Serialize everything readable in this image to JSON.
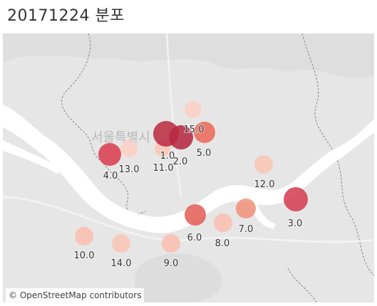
{
  "header": {
    "title": "20171224 분포"
  },
  "map": {
    "city_label": "서울특별시",
    "attribution": "© OpenStreetMap contributors",
    "colors": {
      "land": "#e6e6e6",
      "land_dark": "#dcdcdc",
      "river": "#ffffff",
      "road": "#f5f5f5"
    },
    "markers": [
      {
        "label": "1.0",
        "intensity": "high",
        "color": "#b8283d"
      },
      {
        "label": "2.0",
        "intensity": "high",
        "color": "#b5233c"
      },
      {
        "label": "3.0",
        "intensity": "high",
        "color": "#d2394d"
      },
      {
        "label": "4.0",
        "intensity": "high",
        "color": "#d8394b"
      },
      {
        "label": "5.0",
        "intensity": "medium",
        "color": "#ec6656"
      },
      {
        "label": "6.0",
        "intensity": "medium",
        "color": "#e35a54"
      },
      {
        "label": "7.0",
        "intensity": "medium",
        "color": "#f08f78"
      },
      {
        "label": "8.0",
        "intensity": "low",
        "color": "#f9bdae"
      },
      {
        "label": "9.0",
        "intensity": "low",
        "color": "#f9bdae"
      },
      {
        "label": "10.0",
        "intensity": "low",
        "color": "#f9bdae"
      },
      {
        "label": "11.0",
        "intensity": "low",
        "color": "#f9c4b4"
      },
      {
        "label": "12.0",
        "intensity": "low",
        "color": "#f9c4b4"
      },
      {
        "label": "13.0",
        "intensity": "low",
        "color": "#fbcfc2"
      },
      {
        "label": "14.0",
        "intensity": "low",
        "color": "#f9c4b4"
      },
      {
        "label": "15.0",
        "intensity": "low",
        "color": "#fbcfc2"
      }
    ]
  }
}
